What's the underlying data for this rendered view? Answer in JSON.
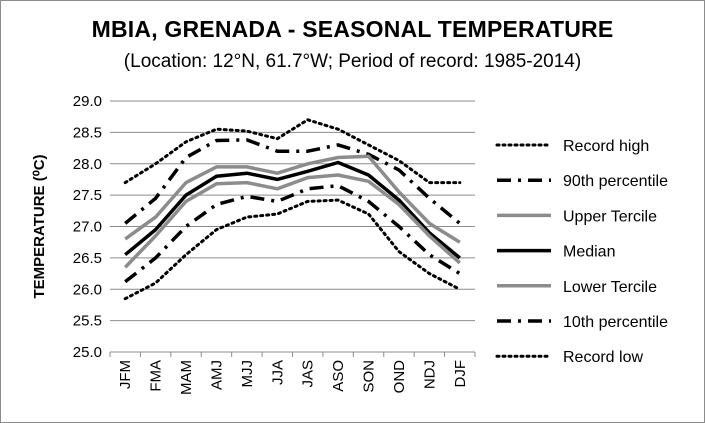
{
  "title": "MBIA, GRENADA - SEASONAL TEMPERATURE",
  "subtitle": "(Location: 12°N, 61.7°W; Period of record: 1985-2014)",
  "chart_data": {
    "type": "line",
    "title": "MBIA, GRENADA - SEASONAL TEMPERATURE",
    "subtitle": "(Location: 12°N, 61.7°W; Period of record: 1985-2014)",
    "xlabel": "",
    "ylabel": "TEMPERATURE (⁰C)",
    "ylim": [
      25.0,
      29.0
    ],
    "yticks": [
      "25.0",
      "25.5",
      "26.0",
      "26.5",
      "27.0",
      "27.5",
      "28.0",
      "28.5",
      "29.0"
    ],
    "grid": "horizontal",
    "legend_position": "right",
    "categories": [
      "JFM",
      "FMA",
      "MAM",
      "AMJ",
      "MJJ",
      "JJA",
      "JAS",
      "ASO",
      "SON",
      "OND",
      "NDJ",
      "DJF"
    ],
    "series": [
      {
        "name": "Record high",
        "style": "dotted",
        "color": "#000000",
        "values": [
          27.7,
          28.0,
          28.35,
          28.55,
          28.52,
          28.4,
          28.7,
          28.55,
          28.3,
          28.05,
          27.7,
          27.7
        ]
      },
      {
        "name": "90th percentile",
        "style": "dashdot",
        "color": "#000000",
        "values": [
          27.05,
          27.45,
          28.1,
          28.37,
          28.38,
          28.2,
          28.2,
          28.3,
          28.15,
          27.9,
          27.45,
          27.05
        ]
      },
      {
        "name": "Upper Tercile",
        "style": "solid",
        "color": "#8c8c8c",
        "values": [
          26.8,
          27.15,
          27.7,
          27.95,
          27.95,
          27.85,
          28.0,
          28.1,
          28.12,
          27.55,
          27.05,
          26.75
        ]
      },
      {
        "name": "Median",
        "style": "solid",
        "color": "#000000",
        "values": [
          26.55,
          26.95,
          27.5,
          27.8,
          27.85,
          27.75,
          27.88,
          28.02,
          27.82,
          27.42,
          26.9,
          26.5
        ]
      },
      {
        "name": "Lower Tercile",
        "style": "solid",
        "color": "#8c8c8c",
        "values": [
          26.35,
          26.85,
          27.4,
          27.68,
          27.7,
          27.6,
          27.78,
          27.82,
          27.72,
          27.35,
          26.85,
          26.42
        ]
      },
      {
        "name": "10th percentile",
        "style": "dashdot",
        "color": "#000000",
        "values": [
          26.12,
          26.5,
          27.0,
          27.35,
          27.48,
          27.4,
          27.6,
          27.65,
          27.4,
          27.0,
          26.55,
          26.25
        ]
      },
      {
        "name": "Record low",
        "style": "dotted",
        "color": "#000000",
        "values": [
          25.85,
          26.1,
          26.55,
          26.95,
          27.15,
          27.2,
          27.4,
          27.42,
          27.2,
          26.6,
          26.25,
          26.0
        ]
      }
    ]
  }
}
